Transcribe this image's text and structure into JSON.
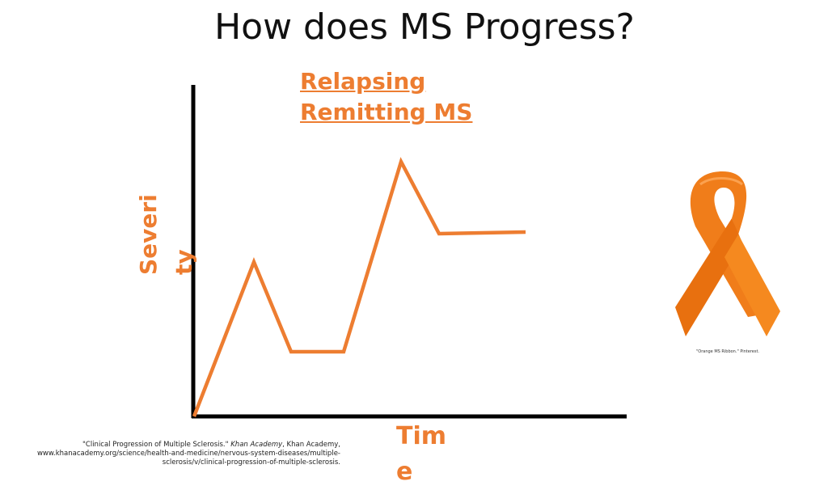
{
  "slide": {
    "title": "How does MS Progress?",
    "subtitle": "Relapsing Remitting MS",
    "y_label": "Severity",
    "x_label": "Time",
    "citation": {
      "before": "\"Clinical Progression of Multiple Sclerosis.\" ",
      "italic": "Khan Academy",
      "after": ", Khan Academy, www.khanacademy.org/science/health-and-medicine/nervous-system-diseases/multiple-sclerosis/v/clinical-progression-of-multiple-sclerosis."
    },
    "ribbon_caption": "\"Orange MS Ribbon.\" Pinterest."
  }
}
